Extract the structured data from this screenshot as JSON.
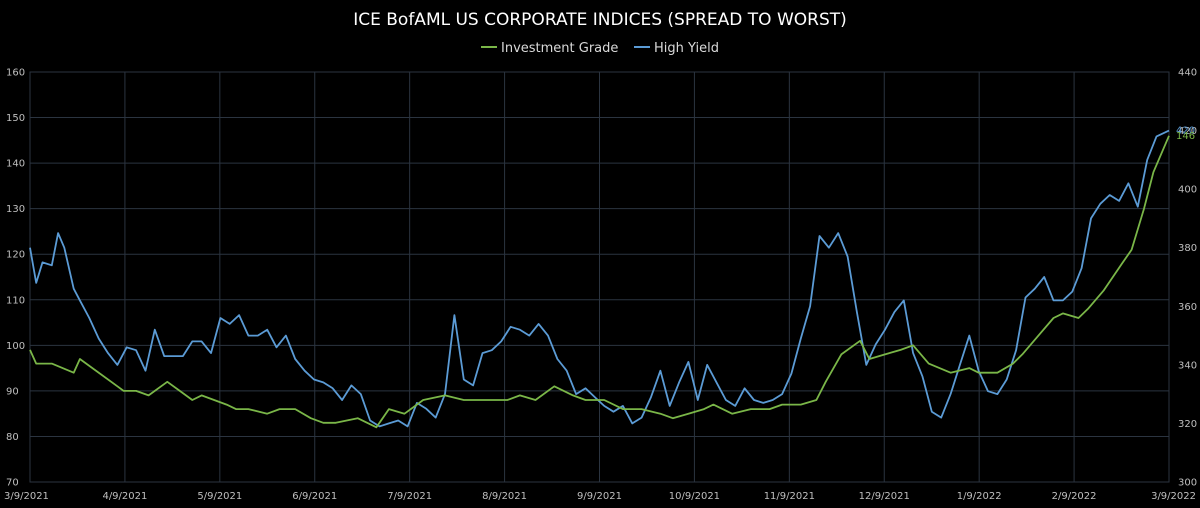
{
  "chart_data": {
    "type": "line",
    "title": "ICE BofAML US CORPORATE INDICES (SPREAD TO WORST)",
    "xlabel": "",
    "ylabel": "",
    "y_left": {
      "lim": [
        70,
        160
      ],
      "ticks": [
        "70",
        "80",
        "90",
        "100",
        "110",
        "120",
        "130",
        "140",
        "150",
        "160"
      ]
    },
    "y_right": {
      "lim": [
        300,
        440
      ],
      "ticks": [
        "300",
        "320",
        "340",
        "360",
        "380",
        "400",
        "420",
        "440"
      ]
    },
    "x_ticks": [
      "3/9/2021",
      "4/9/2021",
      "5/9/2021",
      "6/9/2021",
      "7/9/2021",
      "8/9/2021",
      "9/9/2021",
      "10/9/2021",
      "11/9/2021",
      "12/9/2021",
      "1/9/2022",
      "2/9/2022",
      "3/9/2022"
    ],
    "grid": true,
    "legend_position": "top-center",
    "colors": {
      "background": "#000000",
      "grid": "#2b3440",
      "ig": "#7ab648",
      "hy": "#5b9bd5",
      "text": "#bfbfbf"
    },
    "end_labels": {
      "ig": "146",
      "hy": "420"
    },
    "series": [
      {
        "name": "Investment Grade",
        "axis": "left",
        "x": [
          "2021-03-09",
          "2021-03-11",
          "2021-03-16",
          "2021-03-23",
          "2021-03-25",
          "2021-03-29",
          "2021-04-06",
          "2021-04-08",
          "2021-04-12",
          "2021-04-16",
          "2021-04-22",
          "2021-04-26",
          "2021-04-30",
          "2021-05-03",
          "2021-05-07",
          "2021-05-11",
          "2021-05-14",
          "2021-05-18",
          "2021-05-24",
          "2021-05-28",
          "2021-06-02",
          "2021-06-07",
          "2021-06-11",
          "2021-06-15",
          "2021-06-22",
          "2021-06-28",
          "2021-07-02",
          "2021-07-07",
          "2021-07-13",
          "2021-07-20",
          "2021-07-26",
          "2021-08-03",
          "2021-08-09",
          "2021-08-13",
          "2021-08-18",
          "2021-08-24",
          "2021-08-30",
          "2021-09-03",
          "2021-09-09",
          "2021-09-15",
          "2021-09-21",
          "2021-09-27",
          "2021-10-01",
          "2021-10-06",
          "2021-10-11",
          "2021-10-14",
          "2021-10-20",
          "2021-10-26",
          "2021-11-01",
          "2021-11-05",
          "2021-11-11",
          "2021-11-16",
          "2021-11-19",
          "2021-11-24",
          "2021-11-30",
          "2021-12-03",
          "2021-12-08",
          "2021-12-13",
          "2021-12-17",
          "2021-12-22",
          "2021-12-29",
          "2022-01-04",
          "2022-01-07",
          "2022-01-13",
          "2022-01-18",
          "2022-01-21",
          "2022-01-26",
          "2022-01-31",
          "2022-02-03",
          "2022-02-08",
          "2022-02-11",
          "2022-02-16",
          "2022-02-22",
          "2022-02-25",
          "2022-03-01",
          "2022-03-04",
          "2022-03-09"
        ],
        "values": [
          99,
          96,
          96,
          94,
          97,
          95,
          91,
          90,
          90,
          89,
          92,
          90,
          88,
          89,
          88,
          87,
          86,
          86,
          85,
          86,
          86,
          84,
          83,
          83,
          84,
          82,
          86,
          85,
          88,
          89,
          88,
          88,
          88,
          89,
          88,
          91,
          89,
          88,
          88,
          86,
          86,
          85,
          84,
          85,
          86,
          87,
          85,
          86,
          86,
          87,
          87,
          88,
          92,
          98,
          101,
          97,
          98,
          99,
          100,
          96,
          94,
          95,
          94,
          94,
          96,
          98,
          102,
          106,
          107,
          106,
          108,
          112,
          118,
          121,
          130,
          138,
          146
        ]
      },
      {
        "name": "High Yield",
        "axis": "right",
        "x": [
          "2021-03-09",
          "2021-03-11",
          "2021-03-13",
          "2021-03-16",
          "2021-03-18",
          "2021-03-20",
          "2021-03-23",
          "2021-03-25",
          "2021-03-28",
          "2021-03-31",
          "2021-04-03",
          "2021-04-06",
          "2021-04-09",
          "2021-04-12",
          "2021-04-15",
          "2021-04-18",
          "2021-04-21",
          "2021-04-24",
          "2021-04-27",
          "2021-04-30",
          "2021-05-03",
          "2021-05-06",
          "2021-05-09",
          "2021-05-12",
          "2021-05-15",
          "2021-05-18",
          "2021-05-21",
          "2021-05-24",
          "2021-05-27",
          "2021-05-30",
          "2021-06-02",
          "2021-06-05",
          "2021-06-08",
          "2021-06-11",
          "2021-06-14",
          "2021-06-17",
          "2021-06-20",
          "2021-06-23",
          "2021-06-26",
          "2021-06-29",
          "2021-07-02",
          "2021-07-05",
          "2021-07-08",
          "2021-07-11",
          "2021-07-14",
          "2021-07-17",
          "2021-07-20",
          "2021-07-23",
          "2021-07-26",
          "2021-07-29",
          "2021-08-01",
          "2021-08-04",
          "2021-08-07",
          "2021-08-10",
          "2021-08-13",
          "2021-08-16",
          "2021-08-19",
          "2021-08-22",
          "2021-08-25",
          "2021-08-28",
          "2021-08-31",
          "2021-09-03",
          "2021-09-06",
          "2021-09-09",
          "2021-09-12",
          "2021-09-15",
          "2021-09-18",
          "2021-09-21",
          "2021-09-24",
          "2021-09-27",
          "2021-09-30",
          "2021-10-03",
          "2021-10-06",
          "2021-10-09",
          "2021-10-12",
          "2021-10-15",
          "2021-10-18",
          "2021-10-21",
          "2021-10-24",
          "2021-10-27",
          "2021-10-30",
          "2021-11-02",
          "2021-11-05",
          "2021-11-08",
          "2021-11-11",
          "2021-11-14",
          "2021-11-17",
          "2021-11-20",
          "2021-11-23",
          "2021-11-26",
          "2021-11-29",
          "2021-12-02",
          "2021-12-05",
          "2021-12-08",
          "2021-12-11",
          "2021-12-14",
          "2021-12-17",
          "2021-12-20",
          "2021-12-23",
          "2021-12-26",
          "2021-12-29",
          "2022-01-01",
          "2022-01-04",
          "2022-01-07",
          "2022-01-10",
          "2022-01-13",
          "2022-01-16",
          "2022-01-19",
          "2022-01-22",
          "2022-01-25",
          "2022-01-28",
          "2022-01-31",
          "2022-02-03",
          "2022-02-06",
          "2022-02-09",
          "2022-02-12",
          "2022-02-15",
          "2022-02-18",
          "2022-02-21",
          "2022-02-24",
          "2022-02-27",
          "2022-03-02",
          "2022-03-05",
          "2022-03-09"
        ],
        "values": [
          380,
          368,
          375,
          374,
          385,
          380,
          366,
          362,
          356,
          349,
          344,
          340,
          346,
          345,
          338,
          352,
          343,
          343,
          343,
          348,
          348,
          344,
          356,
          354,
          357,
          350,
          350,
          352,
          346,
          350,
          342,
          338,
          335,
          334,
          332,
          328,
          333,
          330,
          321,
          319,
          320,
          321,
          319,
          327,
          325,
          322,
          330,
          357,
          335,
          333,
          344,
          345,
          348,
          353,
          352,
          350,
          354,
          350,
          342,
          338,
          330,
          332,
          329,
          326,
          324,
          326,
          320,
          322,
          329,
          338,
          326,
          334,
          341,
          328,
          340,
          334,
          328,
          326,
          332,
          328,
          327,
          328,
          330,
          337,
          349,
          360,
          384,
          380,
          385,
          377,
          358,
          340,
          347,
          352,
          358,
          362,
          344,
          336,
          324,
          322,
          330,
          340,
          350,
          338,
          331,
          330,
          335,
          345,
          363,
          366,
          370,
          362,
          362,
          365,
          373,
          390,
          395,
          398,
          396,
          402,
          394,
          410,
          418,
          420
        ]
      }
    ]
  }
}
